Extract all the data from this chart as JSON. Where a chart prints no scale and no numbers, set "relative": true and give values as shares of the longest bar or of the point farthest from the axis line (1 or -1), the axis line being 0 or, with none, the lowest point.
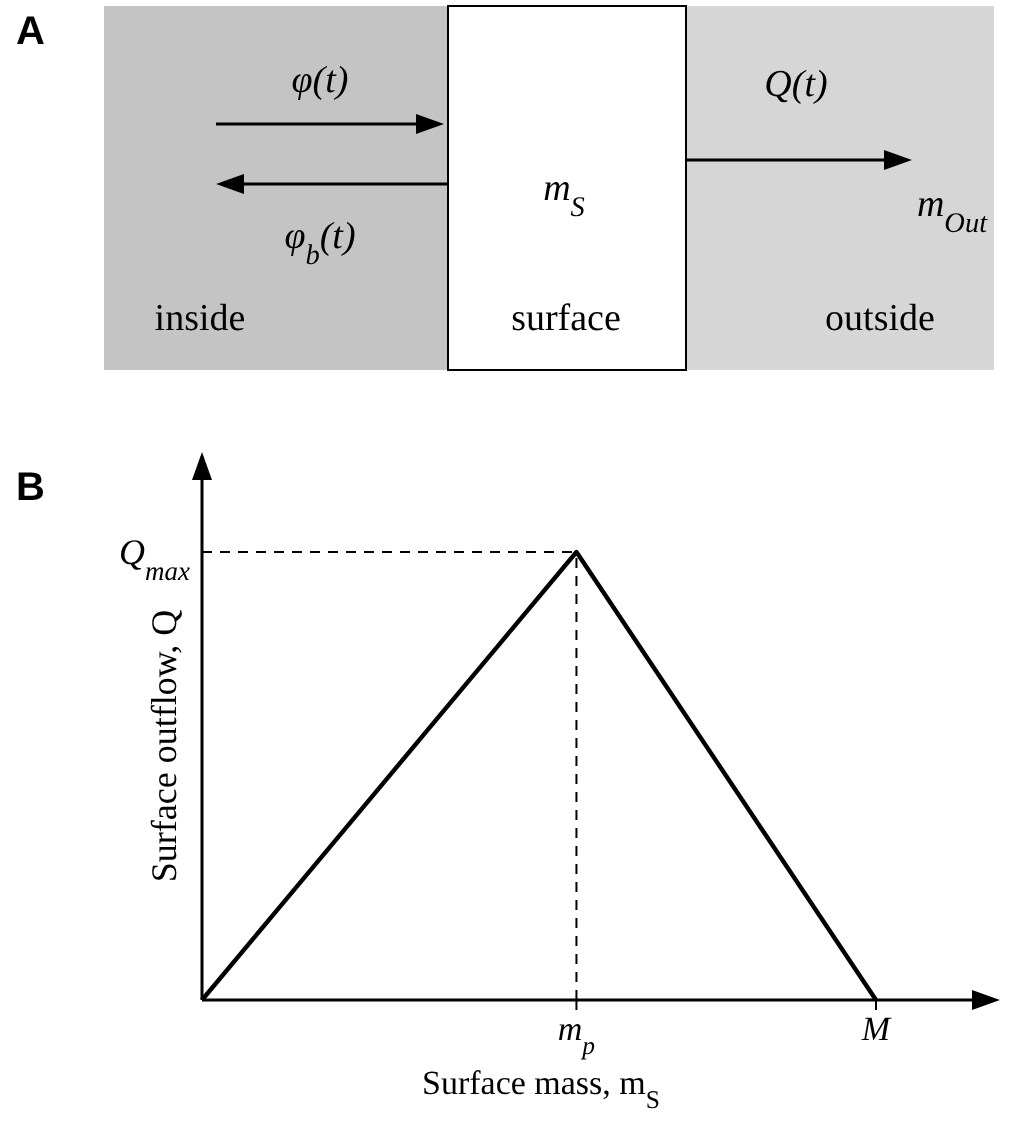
{
  "chart_data": [
    {
      "type": "other",
      "title": "A",
      "annotations": [
        "φ(t)",
        "φ$_{b}$(t)",
        "m$_{S}$",
        "Q(t)",
        "m$_{Out}$",
        "inside",
        "surface",
        "outside"
      ]
    },
    {
      "type": "line",
      "title": "B",
      "xlabel": "Surface mass, m$_{S}$",
      "ylabel": "Surface outflow, Q",
      "relative": true,
      "categories": [
        null,
        null,
        null,
        null,
        null,
        "m$_{p}$",
        null,
        null,
        null,
        "M"
      ],
      "series": [
        {
          "color": "#000000",
          "values": [
            0,
            0.2,
            0.4,
            0.6,
            0.8,
            1,
            0.75,
            0.5,
            0.25,
            0
          ]
        }
      ],
      "ref_lines": [
        {
          "axis": "y",
          "value": 1,
          "label": "Q$_{max}$",
          "line_style": "dashed"
        },
        {
          "axis": "x",
          "value": "m$_{p}$",
          "line_style": "dashed"
        }
      ]
    }
  ]
}
